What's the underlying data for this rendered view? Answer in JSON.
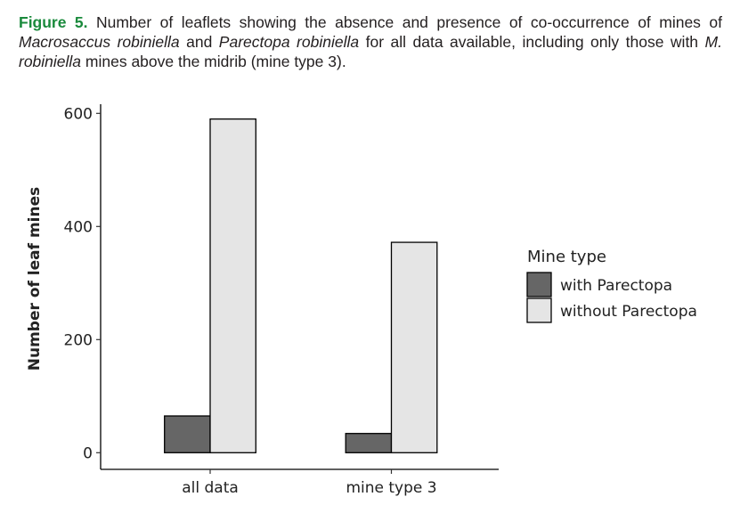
{
  "caption": {
    "label": "Figure 5.",
    "parts": [
      {
        "text": " Number of leaflets showing the absence and presence of co-occurrence of mines of ",
        "italic": false
      },
      {
        "text": "Macrosaccus robiniella",
        "italic": true
      },
      {
        "text": " and ",
        "italic": false
      },
      {
        "text": "Parectopa robiniella",
        "italic": true
      },
      {
        "text": " for all data available, including only those with ",
        "italic": false
      },
      {
        "text": "M. robiniella",
        "italic": true
      },
      {
        "text": " mines above the midrib (mine type 3).",
        "italic": false
      }
    ]
  },
  "chart_data": {
    "type": "bar",
    "categories": [
      "all data",
      "mine type 3"
    ],
    "series": [
      {
        "name": "with Parectopa",
        "values": [
          65,
          34
        ],
        "color": "#666666"
      },
      {
        "name": "without Parectopa",
        "values": [
          590,
          372
        ],
        "color": "#e5e5e5"
      }
    ],
    "xlabel": "",
    "ylabel": "Number of leaf mines",
    "ylim": [
      0,
      600
    ],
    "yticks": [
      0,
      200,
      400,
      600
    ],
    "grid": false,
    "legend": {
      "title": "Mine type",
      "position": "right"
    }
  }
}
